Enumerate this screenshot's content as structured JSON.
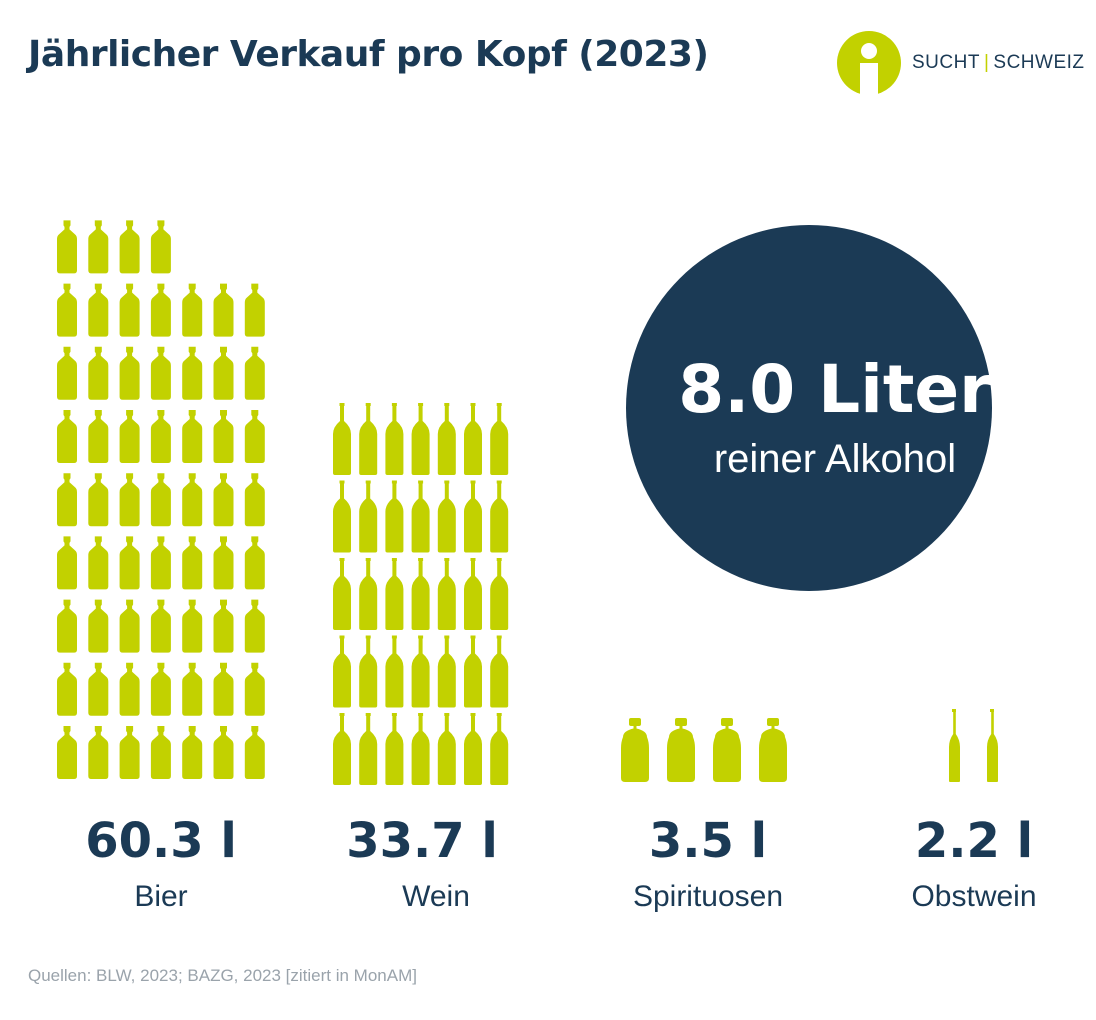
{
  "title": "Jährlicher Verkauf pro Kopf (2023)",
  "logo": {
    "left": "SUCHT",
    "right": "SCHWEIZ"
  },
  "source": "Quellen: BLW, 2023; BAZG, 2023 [zitiert in MonAM]",
  "colors": {
    "accent": "#c2d100",
    "dark": "#1b3a55",
    "source": "#9aa3ab"
  },
  "chart_data": {
    "type": "pictogram",
    "unit": "l",
    "categories": [
      "Bier",
      "Wein",
      "Spirituosen",
      "Obstwein"
    ],
    "values": [
      60.3,
      33.7,
      3.5,
      2.2
    ],
    "value_labels": [
      "60.3 l",
      "33.7 l",
      "3.5 l",
      "2.2 l"
    ],
    "icons_shown": [
      60,
      35,
      4,
      2
    ],
    "icons": [
      "beer-bottle-icon",
      "wine-bottle-icon",
      "spirits-bottle-icon",
      "cider-bottle-icon"
    ],
    "highlight": {
      "value_label": "8.0 Liter",
      "text": "reiner Alkohol"
    }
  }
}
